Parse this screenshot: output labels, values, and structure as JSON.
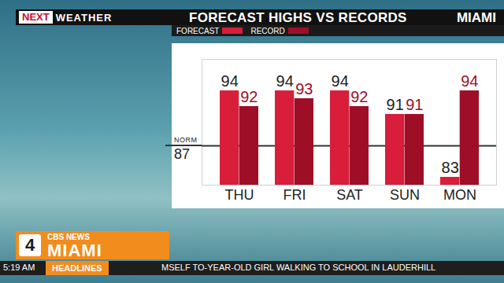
{
  "chart_data": {
    "type": "bar",
    "title": "FORECAST HIGHS VS RECORDS",
    "subtitle": "MIAMI",
    "categories": [
      "THU",
      "FRI",
      "SAT",
      "SUN",
      "MON"
    ],
    "series": [
      {
        "name": "FORECAST",
        "color": "#d81e3a",
        "values": [
          94,
          94,
          94,
          91,
          83
        ]
      },
      {
        "name": "RECORD",
        "color": "#9e0f27",
        "values": [
          92,
          93,
          92,
          91,
          94
        ]
      }
    ],
    "ylim": [
      82,
      98
    ],
    "yticks": [],
    "tick_labels": "x",
    "data_labels": true,
    "norm": {
      "label": "NORM",
      "value": 87
    },
    "annotations": [
      "NEXT",
      "WEATHER",
      "4",
      "CBS NEWS",
      "MIAMI",
      "5:19 AM",
      "HEADLINES",
      "MSELF TO-YEAR-OLD GIRL WALKING TO SCHOOL IN LAUDERHILL"
    ]
  }
}
